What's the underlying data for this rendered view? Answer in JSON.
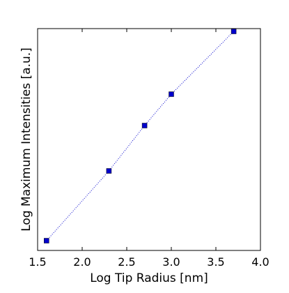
{
  "chart_data": {
    "type": "line",
    "title": "",
    "xlabel": "Log Tip Radius [nm]",
    "ylabel": "Log Maximum Intensities [a.u.]",
    "xlim": [
      1.5,
      4.0
    ],
    "xticks": [
      1.5,
      2.0,
      2.5,
      3.0,
      3.5,
      4.0
    ],
    "xtick_labels": [
      "1.5",
      "2.0",
      "2.5",
      "3.0",
      "3.5",
      "4.0"
    ],
    "yticks_shown": false,
    "grid": false,
    "legend": false,
    "series": [
      {
        "x": [
          1.6,
          2.3,
          2.7,
          3.0,
          3.7
        ],
        "y": [
          0.0,
          1.0,
          1.65,
          2.1,
          3.0
        ],
        "color": "#0000cc",
        "marker": "square",
        "line_style": "dotted"
      }
    ],
    "y_unscaled": true
  }
}
